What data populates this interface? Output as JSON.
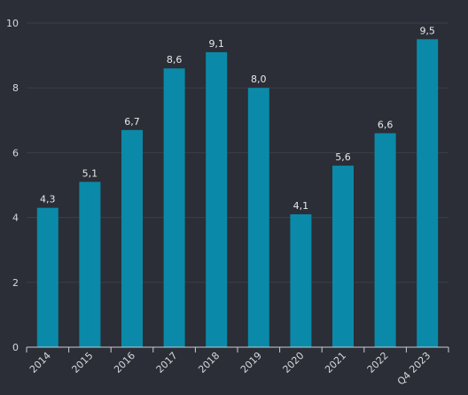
{
  "chart_data": {
    "type": "bar",
    "title": "",
    "xlabel": "",
    "ylabel": "",
    "categories": [
      "2014",
      "2015",
      "2016",
      "2017",
      "2018",
      "2019",
      "2020",
      "2021",
      "2022",
      "Q4 2023"
    ],
    "values": [
      4.3,
      5.1,
      6.7,
      8.6,
      9.1,
      8.0,
      4.1,
      5.6,
      6.6,
      9.5
    ],
    "data_labels": [
      "4,3",
      "5,1",
      "6,7",
      "8,6",
      "9,1",
      "8,0",
      "4,1",
      "5,6",
      "6,6",
      "9,5"
    ],
    "ylim": [
      0,
      10
    ],
    "yticks": [
      0,
      2,
      4,
      6,
      8,
      10
    ],
    "grid": true,
    "legend": "none",
    "colors": {
      "bar": "#0a8aa8",
      "background": "#2b2e36",
      "grid": "#3a3e47",
      "axis": "#c9ccd1",
      "text": "#d6d8dc"
    }
  }
}
